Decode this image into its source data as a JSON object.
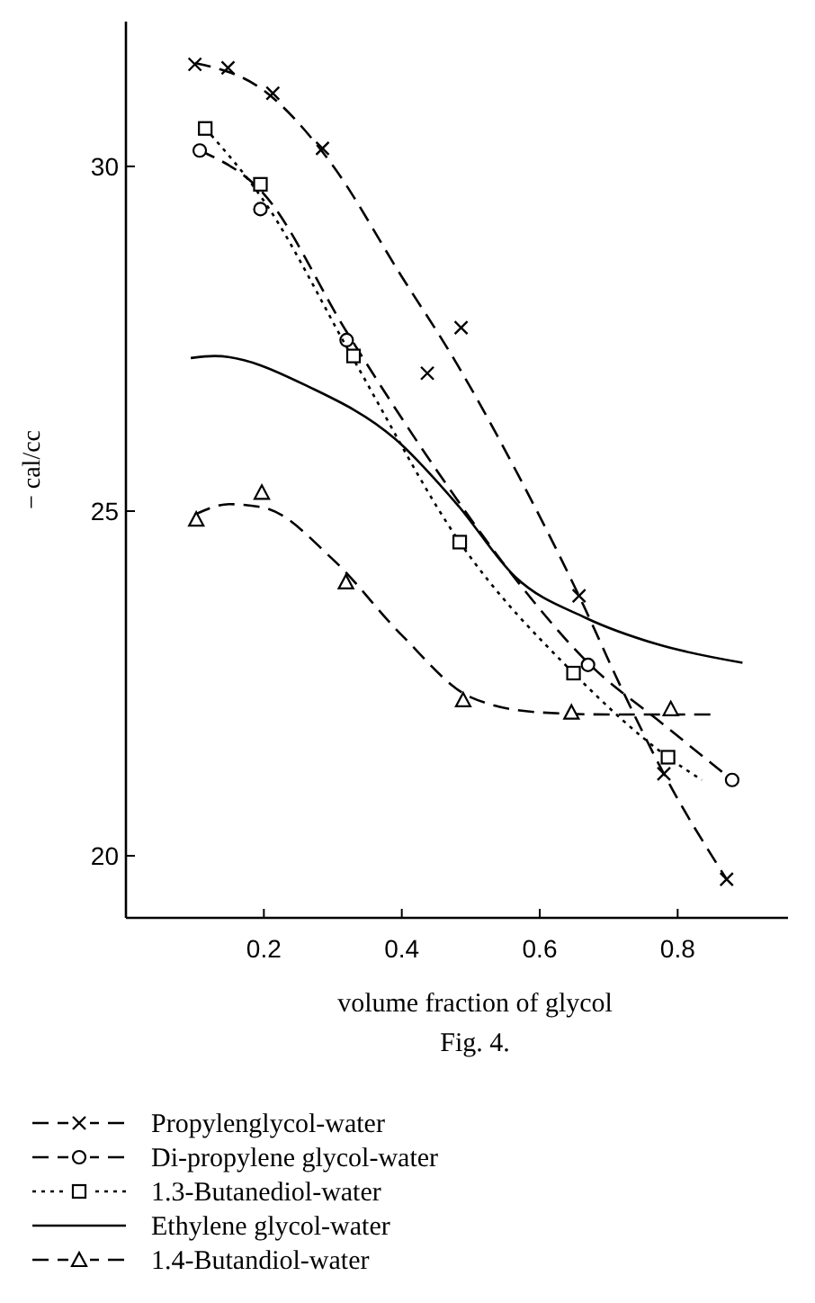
{
  "chart_data": {
    "type": "scatter",
    "xlabel": "volume fraction of glycol",
    "ylabel": "− cal/cc",
    "annotations": [
      "Fig. 4."
    ],
    "xlim": [
      0,
      0.96
    ],
    "ylim": [
      19.1,
      32.1
    ],
    "xticks": [
      0.2,
      0.4,
      0.6,
      0.8
    ],
    "yticks": [
      20,
      25,
      30
    ],
    "grid": false,
    "legend": "bottom",
    "series": [
      {
        "type": "line",
        "name": "Propylenglycol-water",
        "color": "#000000",
        "line_style": "dashed",
        "marker": "none",
        "x": [
          0.1,
          0.2,
          0.295,
          0.4,
          0.476,
          0.57,
          0.657,
          0.72,
          0.78,
          0.871
        ],
        "values": [
          31.5,
          31.1,
          30.08,
          28.4,
          27.2,
          25.5,
          23.77,
          22.4,
          21.19,
          19.66
        ]
      },
      {
        "color": "#000000",
        "marker": "cross",
        "x": [
          0.1,
          0.148,
          0.213,
          0.285,
          0.437,
          0.486,
          0.657,
          0.78,
          0.871
        ],
        "values": [
          31.48,
          31.43,
          31.06,
          30.26,
          27.0,
          27.66,
          23.77,
          21.19,
          19.66
        ]
      },
      {
        "type": "line",
        "name": "Di-propylene glycol-water",
        "color": "#000000",
        "line_style": "dashed",
        "marker": "none",
        "x": [
          0.107,
          0.2,
          0.32,
          0.45,
          0.57,
          0.67,
          0.78,
          0.879
        ],
        "values": [
          30.23,
          29.6,
          27.6,
          25.6,
          23.95,
          22.8,
          21.9,
          21.1
        ]
      },
      {
        "color": "#000000",
        "marker": "circle",
        "x": [
          0.107,
          0.195,
          0.32,
          0.67,
          0.879
        ],
        "values": [
          30.23,
          29.38,
          27.48,
          22.77,
          21.1
        ]
      },
      {
        "type": "line",
        "name": "1.3-Butanediol-water",
        "color": "#000000",
        "line_style": "dotted",
        "marker": "none",
        "x": [
          0.115,
          0.2,
          0.33,
          0.484,
          0.649,
          0.786,
          0.835
        ],
        "values": [
          30.55,
          29.5,
          27.2,
          24.55,
          22.65,
          21.43,
          21.1
        ]
      },
      {
        "color": "#000000",
        "marker": "square",
        "x": [
          0.115,
          0.195,
          0.33,
          0.484,
          0.649,
          0.786
        ],
        "values": [
          30.55,
          29.74,
          27.25,
          24.55,
          22.65,
          21.43
        ]
      },
      {
        "type": "line",
        "name": "Ethylene glycol-water",
        "color": "#000000",
        "marker": "none",
        "line_style": "solid",
        "x": [
          0.094,
          0.128,
          0.27,
          0.39,
          0.48,
          0.564,
          0.667,
          0.77,
          0.894
        ],
        "values": [
          27.22,
          27.25,
          26.78,
          26.05,
          25.1,
          24.05,
          23.45,
          23.07,
          22.8
        ]
      },
      {
        "type": "line",
        "name": "1.4-Butandiol-water",
        "color": "#000000",
        "line_style": "dashed",
        "marker": "none",
        "x": [
          0.1,
          0.15,
          0.2,
          0.3,
          0.4,
          0.5,
          0.6,
          0.7,
          0.85
        ],
        "values": [
          24.95,
          25.1,
          25.05,
          24.3,
          23.2,
          22.3,
          22.08,
          22.05,
          22.05
        ]
      },
      {
        "color": "#000000",
        "marker": "triangle",
        "x": [
          0.102,
          0.197,
          0.319,
          0.489,
          0.646,
          0.79
        ],
        "values": [
          24.88,
          25.27,
          23.97,
          22.26,
          22.08,
          22.13
        ]
      }
    ]
  }
}
